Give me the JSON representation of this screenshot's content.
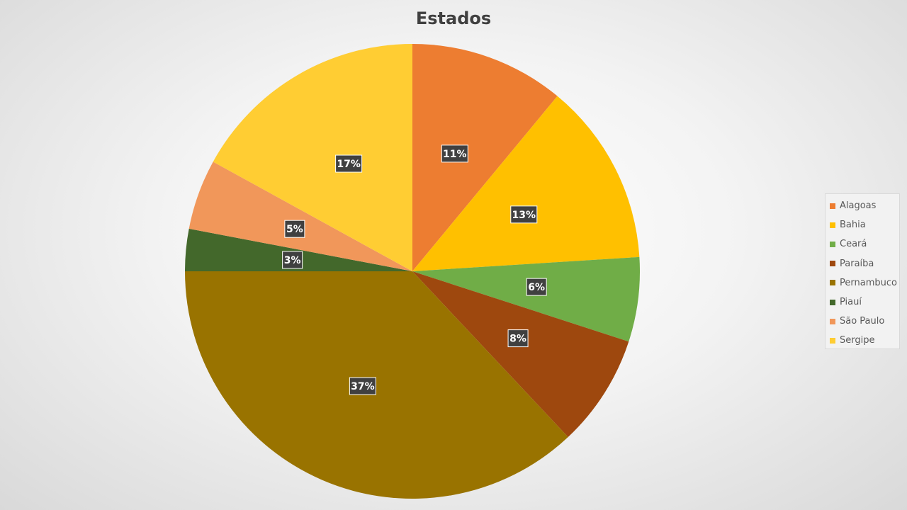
{
  "chart_data": {
    "type": "pie",
    "title": "Estados",
    "categories": [
      "Alagoas",
      "Bahia",
      "Ceará",
      "Paraíba",
      "Pernambuco",
      "Piauí",
      "São Paulo",
      "Sergipe"
    ],
    "values": [
      11,
      13,
      6,
      8,
      37,
      3,
      5,
      17
    ],
    "labels": [
      "11%",
      "13%",
      "6%",
      "8%",
      "37%",
      "3%",
      "5%",
      "17%"
    ],
    "colors": [
      "#ED7D31",
      "#FFC000",
      "#70AD47",
      "#9E480E",
      "#997300",
      "#43682B",
      "#F1975A",
      "#FFCD33"
    ],
    "legend": "right"
  }
}
